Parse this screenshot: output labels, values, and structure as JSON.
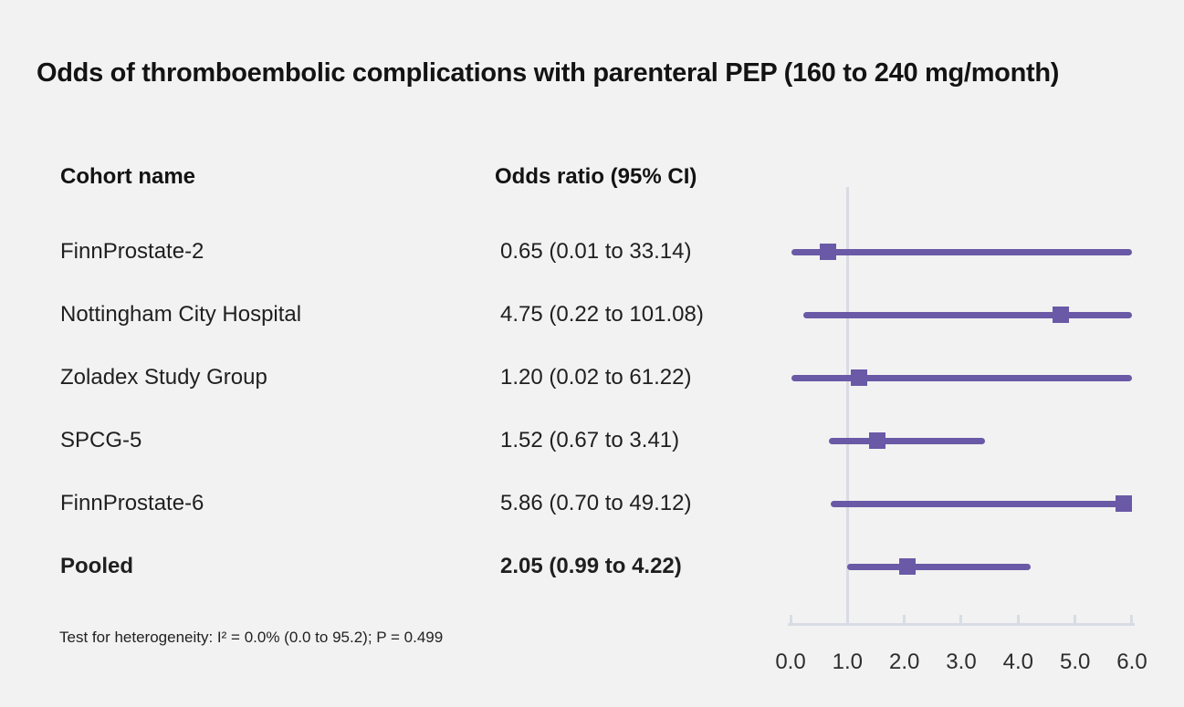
{
  "chart_data": {
    "type": "scatter",
    "variant": "forest-plot",
    "title": "Odds of thromboembolic complications with parenteral PEP (160 to 240 mg/month)",
    "column_headers": {
      "cohort": "Cohort name",
      "odds_ratio": "Odds ratio (95% CI)"
    },
    "rows": [
      {
        "name": "FinnProstate-2",
        "or": 0.65,
        "ci_low": 0.01,
        "ci_high": 33.14,
        "or_label": "0.65 (0.01 to 33.14)",
        "pooled": false
      },
      {
        "name": "Nottingham City Hospital",
        "or": 4.75,
        "ci_low": 0.22,
        "ci_high": 101.08,
        "or_label": "4.75 (0.22 to 101.08)",
        "pooled": false
      },
      {
        "name": "Zoladex Study Group",
        "or": 1.2,
        "ci_low": 0.02,
        "ci_high": 61.22,
        "or_label": "1.20 (0.02 to 61.22)",
        "pooled": false
      },
      {
        "name": "SPCG-5",
        "or": 1.52,
        "ci_low": 0.67,
        "ci_high": 3.41,
        "or_label": "1.52 (0.67 to 3.41)",
        "pooled": false
      },
      {
        "name": "FinnProstate-6",
        "or": 5.86,
        "ci_low": 0.7,
        "ci_high": 49.12,
        "or_label": "5.86 (0.70 to 49.12)",
        "pooled": false
      },
      {
        "name": "Pooled",
        "or": 2.05,
        "ci_low": 0.99,
        "ci_high": 4.22,
        "or_label": "2.05 (0.99 to 4.22)",
        "pooled": true
      }
    ],
    "x_axis": {
      "min": 0,
      "max": 6,
      "tick_labels": [
        "0.0",
        "1.0",
        "2.0",
        "3.0",
        "4.0",
        "5.0",
        "6.0"
      ],
      "clip_ci_at_max": true
    },
    "reference_line_x": 1.0,
    "footnote": "Test for heterogeneity: I² = 0.0% (0.0 to 95.2); P = 0.499",
    "legend": "none",
    "grid": "off",
    "colors": {
      "marker": "#6a59a6",
      "reference_line": "#d8dce3",
      "axis": "#d8dce3",
      "background": "#f2f2f2",
      "text": "#1c1c1c"
    }
  }
}
